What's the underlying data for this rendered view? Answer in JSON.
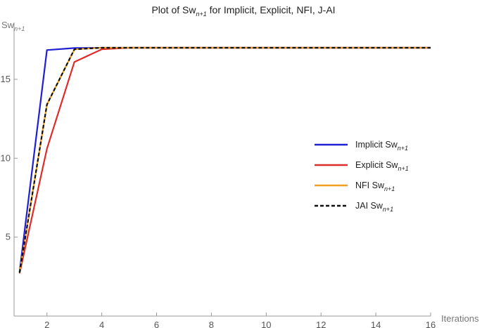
{
  "chart_data": {
    "type": "line",
    "title_prefix": "Plot of Sw",
    "title_sub": "n+1",
    "title_suffix": " for Implicit, Explicit, NFI, J-AI",
    "ylabel": "Sw",
    "ylabel_sub": "n+1",
    "xlabel": "Iterations",
    "xlim": [
      0.8,
      16
    ],
    "ylim": [
      0,
      17.8
    ],
    "xticks": [
      2,
      4,
      6,
      8,
      10,
      12,
      14,
      16
    ],
    "yticks": [
      5,
      10,
      15
    ],
    "grid": false,
    "legend_position": "right",
    "x": [
      1,
      2,
      3,
      4,
      5,
      6,
      7,
      8,
      9,
      10,
      11,
      12,
      13,
      14,
      15,
      16
    ],
    "series": [
      {
        "name": "Implicit Sw",
        "name_sub": "n+1",
        "color": "#1f1fd6",
        "dash": "solid",
        "values": [
          2.8,
          16.85,
          16.98,
          17.0,
          17.0,
          17.0,
          17.0,
          17.0,
          17.0,
          17.0,
          17.0,
          17.0,
          17.0,
          17.0,
          17.0,
          17.0
        ]
      },
      {
        "name": "Explicit Sw",
        "name_sub": "n+1",
        "color": "#e02b2b",
        "dash": "solid",
        "values": [
          2.7,
          10.6,
          16.1,
          16.9,
          17.0,
          17.0,
          17.0,
          17.0,
          17.0,
          17.0,
          17.0,
          17.0,
          17.0,
          17.0,
          17.0,
          17.0
        ]
      },
      {
        "name": "NFI Sw",
        "name_sub": "n+1",
        "color": "#f0a020",
        "dash": "solid",
        "values": [
          2.75,
          13.4,
          16.9,
          17.0,
          17.0,
          17.0,
          17.0,
          17.0,
          17.0,
          17.0,
          17.0,
          17.0,
          17.0,
          17.0,
          17.0,
          17.0
        ]
      },
      {
        "name": "JAI Sw",
        "name_sub": "n+1",
        "color": "#111111",
        "dash": "dashed",
        "values": [
          2.75,
          13.4,
          16.9,
          17.0,
          17.0,
          17.0,
          17.0,
          17.0,
          17.0,
          17.0,
          17.0,
          17.0,
          17.0,
          17.0,
          17.0,
          17.0
        ]
      }
    ]
  }
}
